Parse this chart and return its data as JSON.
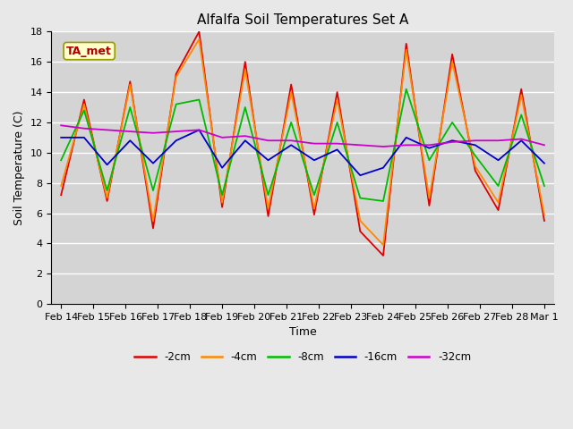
{
  "title": "Alfalfa Soil Temperatures Set A",
  "xlabel": "Time",
  "ylabel": "Soil Temperature (C)",
  "ylim": [
    0,
    18
  ],
  "yticks": [
    0,
    2,
    4,
    6,
    8,
    10,
    12,
    14,
    16,
    18
  ],
  "background_color": "#e8e8e8",
  "plot_bg_color": "#d4d4d4",
  "legend_label": "TA_met",
  "legend_box_color": "#ffffcc",
  "legend_box_edge": "#999900",
  "series_colors": {
    "-2cm": "#dd0000",
    "-4cm": "#ff8800",
    "-8cm": "#00bb00",
    "-16cm": "#0000cc",
    "-32cm": "#cc00cc"
  },
  "x_tick_labels": [
    "Feb 14",
    "Feb 15",
    "Feb 16",
    "Feb 17",
    "Feb 18",
    "Feb 19",
    "Feb 20",
    "Feb 21",
    "Feb 22",
    "Feb 23",
    "Feb 24",
    "Feb 25",
    "Feb 26",
    "Feb 27",
    "Feb 28",
    "Mar 1"
  ],
  "data_2cm": [
    7.2,
    13.5,
    6.8,
    14.7,
    5.0,
    15.2,
    18.0,
    6.4,
    16.0,
    5.8,
    14.5,
    5.9,
    14.0,
    4.8,
    3.2,
    17.2,
    6.5,
    16.5,
    8.8,
    6.2,
    14.2,
    5.5
  ],
  "data_4cm": [
    7.8,
    13.2,
    7.0,
    14.5,
    5.5,
    15.0,
    17.5,
    6.7,
    15.5,
    6.3,
    14.0,
    6.3,
    13.5,
    5.5,
    3.9,
    16.8,
    7.0,
    16.0,
    9.1,
    6.7,
    13.8,
    5.9
  ],
  "data_8cm": [
    9.5,
    12.8,
    7.5,
    13.0,
    7.5,
    13.2,
    13.5,
    7.2,
    13.0,
    7.2,
    12.0,
    7.2,
    12.0,
    7.0,
    6.8,
    14.2,
    9.5,
    12.0,
    9.8,
    7.8,
    12.5,
    7.8
  ],
  "data_16cm": [
    11.0,
    11.0,
    9.2,
    10.8,
    9.3,
    10.8,
    11.5,
    9.0,
    10.8,
    9.5,
    10.5,
    9.5,
    10.2,
    8.5,
    9.0,
    11.0,
    10.3,
    10.8,
    10.5,
    9.5,
    10.8,
    9.3
  ],
  "data_32cm": [
    11.8,
    11.6,
    11.5,
    11.4,
    11.3,
    11.4,
    11.5,
    11.0,
    11.1,
    10.8,
    10.8,
    10.6,
    10.6,
    10.5,
    10.4,
    10.5,
    10.5,
    10.7,
    10.8,
    10.8,
    10.9,
    10.5
  ]
}
